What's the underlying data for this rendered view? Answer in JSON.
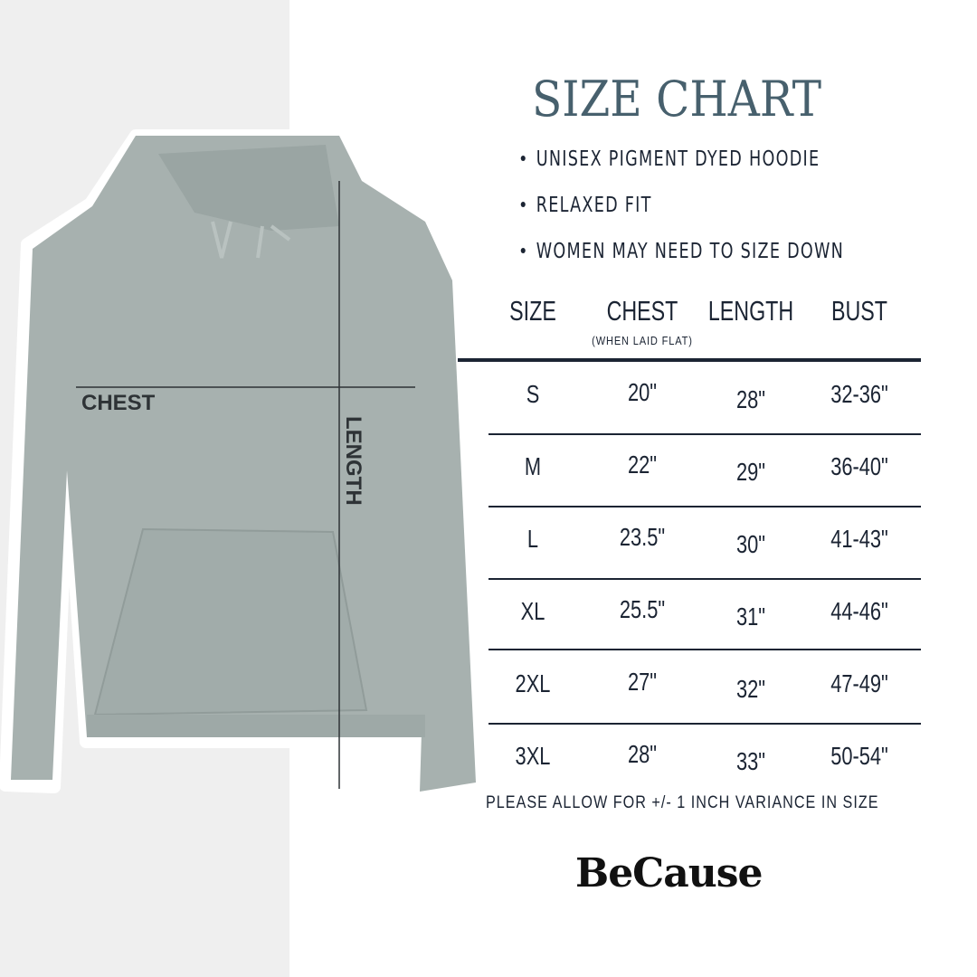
{
  "title": "SIZE CHART",
  "bullets": [
    "UNISEX PIGMENT DYED HOODIE",
    "RELAXED FIT",
    "WOMEN MAY NEED TO SIZE DOWN"
  ],
  "diagram": {
    "chest_label": "CHEST",
    "length_label": "LENGTH"
  },
  "table": {
    "headers": [
      "SIZE",
      "CHEST",
      "LENGTH",
      "BUST"
    ],
    "chest_note": "(WHEN LAID FLAT)",
    "rows": [
      [
        "S",
        "20\"",
        "28\"",
        "32-36\""
      ],
      [
        "M",
        "22\"",
        "29\"",
        "36-40\""
      ],
      [
        "L",
        "23.5\"",
        "30\"",
        "41-43\""
      ],
      [
        "XL",
        "25.5\"",
        "31\"",
        "44-46\""
      ],
      [
        "2XL",
        "27\"",
        "32\"",
        "47-49\""
      ],
      [
        "3XL",
        "28\"",
        "33\"",
        "50-54\""
      ]
    ]
  },
  "note": "PLEASE ALLOW FOR +/- 1 INCH VARIANCE IN SIZE",
  "brand": "BeCause",
  "colors": {
    "title": "#47606d",
    "text": "#1b2433",
    "hoodie": "#a7b1af",
    "left_bg": "#efefef"
  }
}
